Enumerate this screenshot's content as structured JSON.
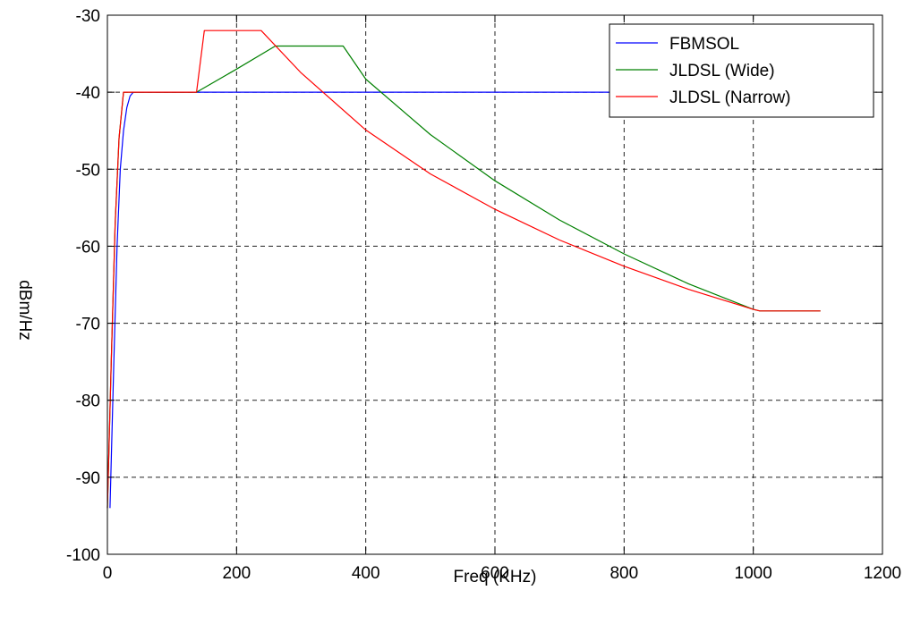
{
  "chart_data": {
    "type": "line",
    "xlabel": "Freq (KHz)",
    "ylabel": "dBm/Hz",
    "xlim": [
      0,
      1200
    ],
    "ylim": [
      -100,
      -30
    ],
    "xticks": [
      0,
      200,
      400,
      600,
      800,
      1000,
      1200
    ],
    "yticks": [
      -30,
      -40,
      -50,
      -60,
      -70,
      -80,
      -90,
      -100
    ],
    "grid": true,
    "legend_position": "top-right",
    "series": [
      {
        "name": "FBMSOL",
        "color": "#0000ff",
        "x": [
          4,
          10,
          15,
          20,
          25,
          30,
          35,
          40,
          800
        ],
        "y": [
          -94,
          -75,
          -60,
          -50,
          -45,
          -42,
          -40.5,
          -40,
          -40
        ]
      },
      {
        "name": "JLDSL (Wide)",
        "color": "#008000",
        "x": [
          0,
          6,
          12,
          18,
          25,
          138,
          200,
          260,
          365,
          400,
          500,
          600,
          700,
          800,
          900,
          1000,
          1010,
          1104
        ],
        "y": [
          -94,
          -75,
          -57,
          -46,
          -40,
          -40,
          -37,
          -34,
          -34,
          -38.3,
          -45.5,
          -51.5,
          -56.6,
          -61,
          -64.9,
          -68.2,
          -68.4,
          -68.4
        ]
      },
      {
        "name": "JLDSL (Narrow)",
        "color": "#ff0000",
        "x": [
          0,
          6,
          12,
          18,
          25,
          138,
          150,
          238,
          300,
          400,
          500,
          600,
          700,
          800,
          900,
          1000,
          1010,
          1104
        ],
        "y": [
          -94,
          -75,
          -57,
          -46,
          -40,
          -40,
          -32,
          -32,
          -37.5,
          -44.9,
          -50.6,
          -55.2,
          -59.2,
          -62.6,
          -65.6,
          -68.2,
          -68.4,
          -68.4
        ]
      }
    ]
  }
}
